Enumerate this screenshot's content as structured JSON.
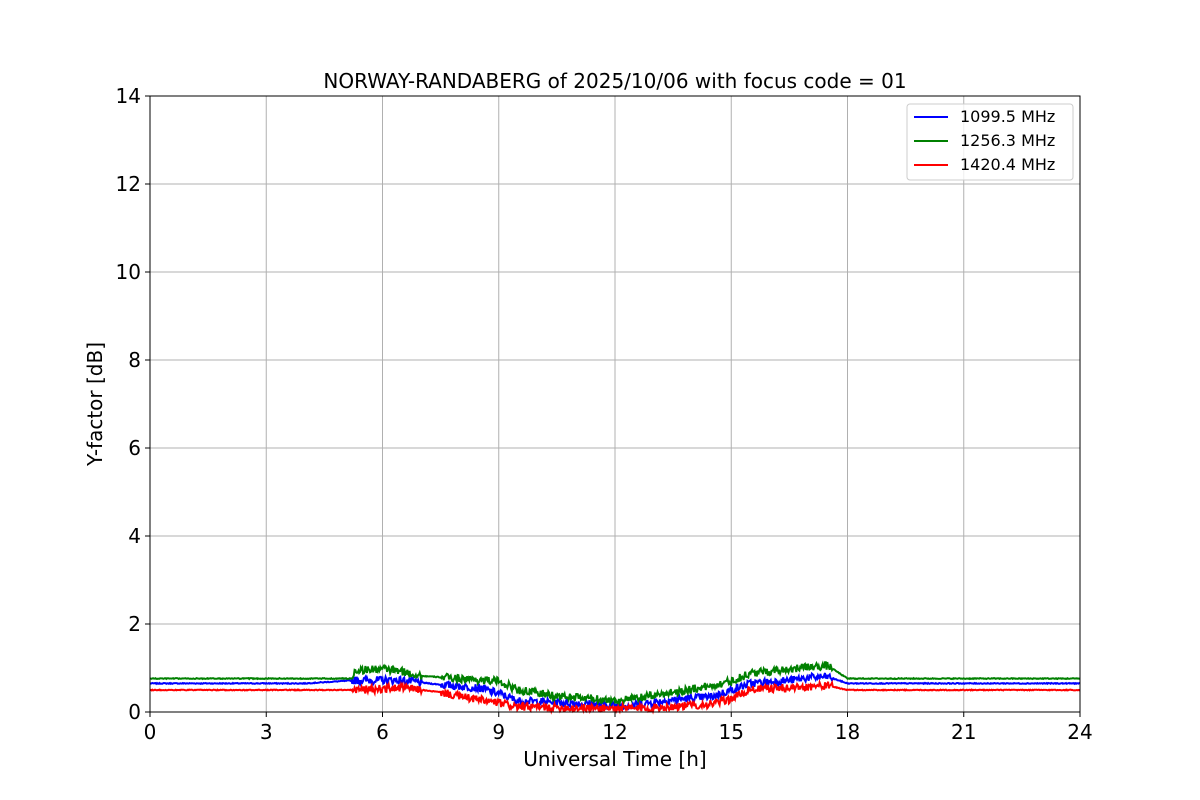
{
  "chart_data": {
    "type": "line",
    "title": "NORWAY-RANDABERG of 2025/10/06 with focus code = 01",
    "xlabel": "Universal Time [h]",
    "ylabel": "Y-factor [dB]",
    "xlim": [
      0,
      24
    ],
    "ylim": [
      0,
      14
    ],
    "xticks": [
      "0",
      "3",
      "6",
      "9",
      "12",
      "15",
      "18",
      "21",
      "24"
    ],
    "yticks": [
      "0",
      "2",
      "4",
      "6",
      "8",
      "10",
      "12",
      "14"
    ],
    "xtick_values": [
      0,
      3,
      6,
      9,
      12,
      15,
      18,
      21,
      24
    ],
    "ytick_values": [
      0,
      2,
      4,
      6,
      8,
      10,
      12,
      14
    ],
    "grid": true,
    "legend_position": "top-right",
    "series": [
      {
        "name": "1099.5 MHz",
        "color": "#0000ff",
        "x": [
          0,
          4.0,
          5.3,
          6.5,
          7.5,
          8.5,
          9.0,
          9.5,
          10.5,
          11.5,
          12.0,
          12.5,
          13.5,
          14.5,
          15.0,
          15.5,
          16.5,
          17.0,
          17.5,
          18.0,
          24
        ],
        "y": [
          0.65,
          0.65,
          0.72,
          0.72,
          0.62,
          0.55,
          0.42,
          0.25,
          0.22,
          0.18,
          0.15,
          0.16,
          0.28,
          0.35,
          0.5,
          0.65,
          0.72,
          0.78,
          0.8,
          0.65,
          0.65
        ]
      },
      {
        "name": "1256.3 MHz",
        "color": "#008000",
        "x": [
          0,
          5.2,
          5.3,
          6.0,
          6.5,
          7.0,
          8.0,
          9.0,
          9.5,
          10.5,
          11.5,
          12.0,
          12.5,
          13.5,
          14.5,
          15.0,
          15.5,
          16.5,
          17.0,
          17.5,
          18.0,
          24
        ],
        "y": [
          0.76,
          0.76,
          0.95,
          0.98,
          0.92,
          0.82,
          0.76,
          0.7,
          0.5,
          0.36,
          0.3,
          0.26,
          0.3,
          0.45,
          0.6,
          0.7,
          0.88,
          0.98,
          1.02,
          1.05,
          0.76,
          0.76
        ]
      },
      {
        "name": "1420.4 MHz",
        "color": "#ff0000",
        "x": [
          0,
          5.3,
          6.5,
          7.5,
          8.0,
          8.5,
          9.0,
          9.5,
          10.5,
          11.5,
          12.0,
          12.5,
          13.5,
          14.5,
          15.0,
          15.5,
          16.5,
          17.0,
          17.5,
          18.0,
          24
        ],
        "y": [
          0.5,
          0.5,
          0.55,
          0.45,
          0.35,
          0.28,
          0.2,
          0.12,
          0.1,
          0.09,
          0.08,
          0.08,
          0.12,
          0.18,
          0.3,
          0.52,
          0.55,
          0.58,
          0.6,
          0.5,
          0.5
        ]
      }
    ]
  }
}
